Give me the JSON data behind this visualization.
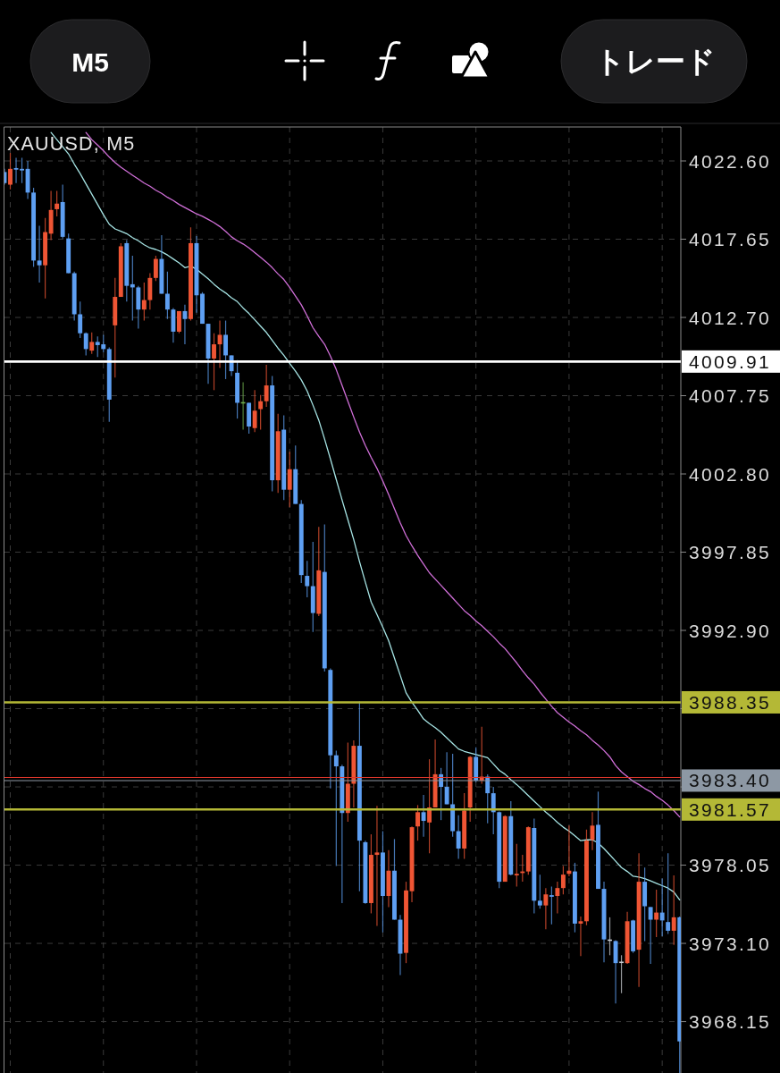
{
  "chart_data": {
    "type": "candlestick",
    "title": "XAUUSD, M5",
    "annotations": [
      "M5",
      "トレード"
    ],
    "categories": [
      null,
      null,
      null,
      null,
      null,
      null,
      null,
      null,
      null,
      null,
      null,
      null,
      null,
      null,
      null,
      null,
      null,
      null,
      null,
      null,
      null,
      null,
      null,
      null,
      null,
      null,
      null,
      null,
      null,
      null,
      null,
      null,
      null,
      null,
      null,
      null,
      null,
      null,
      null,
      null,
      null,
      null,
      null,
      null,
      null,
      null,
      null,
      null,
      null,
      null,
      null,
      null,
      null,
      null,
      null,
      null,
      null,
      null,
      null,
      null,
      null,
      null,
      null,
      null,
      null,
      null,
      null,
      null,
      null,
      null,
      null,
      null,
      null,
      null,
      null,
      null,
      null,
      null,
      null,
      null,
      null,
      null,
      null,
      null,
      null,
      null,
      null,
      null,
      null,
      null,
      null,
      null,
      null,
      null,
      null,
      null,
      null,
      null,
      null,
      null,
      null,
      null,
      null,
      null,
      null,
      null,
      null,
      null,
      null,
      null,
      null,
      null,
      null,
      null,
      null,
      null,
      null
    ],
    "ohlc": [
      [
        4021.9,
        4022.1,
        4021.1,
        4021.2
      ],
      [
        4021.1,
        4023.1,
        4020.8,
        4022.1
      ],
      [
        4022.15,
        4022.8,
        4021.2,
        4022.05
      ],
      [
        4022.1,
        4022.8,
        4021.2,
        4022.0
      ],
      [
        4022.1,
        4022.6,
        4020.2,
        4020.6
      ],
      [
        4020.6,
        4020.9,
        4015.9,
        4016.3
      ],
      [
        4016.3,
        4018.5,
        4014.9,
        4016.0
      ],
      [
        4016.0,
        4019.0,
        4013.9,
        4018.1
      ],
      [
        4018.0,
        4020.7,
        4017.6,
        4019.5
      ],
      [
        4019.55,
        4020.7,
        4019.1,
        4019.9
      ],
      [
        4020.0,
        4021.1,
        4017.7,
        4017.8
      ],
      [
        4017.7,
        4018.0,
        4015.5,
        4015.5
      ],
      [
        4015.5,
        4015.6,
        4012.5,
        4012.9
      ],
      [
        4012.9,
        4013.7,
        4011.4,
        4011.7
      ],
      [
        4011.7,
        4011.75,
        4010.3,
        4010.7
      ],
      [
        4010.6,
        4011.75,
        4010.4,
        4011.15
      ],
      [
        4011.15,
        4011.5,
        4010.2,
        4010.95
      ],
      [
        4011.0,
        4011.6,
        4010.5,
        4010.7
      ],
      [
        4010.7,
        4010.8,
        4006.1,
        4007.5
      ],
      [
        4012.2,
        4015.2,
        4008.9,
        4014.0
      ],
      [
        4014.0,
        4017.4,
        4014.0,
        4017.2
      ],
      [
        4017.4,
        4017.6,
        4013.7,
        4014.7
      ],
      [
        4014.8,
        4016.6,
        4012.5,
        4014.6
      ],
      [
        4014.6,
        4014.7,
        4012.0,
        4013.2
      ],
      [
        4013.2,
        4014.9,
        4012.5,
        4013.8
      ],
      [
        4013.8,
        4015.5,
        4013.2,
        4015.2
      ],
      [
        4015.2,
        4016.6,
        4015.0,
        4016.4
      ],
      [
        4016.4,
        4017.9,
        4014.2,
        4014.2
      ],
      [
        4014.2,
        4015.6,
        4012.6,
        4013.2
      ],
      [
        4013.2,
        4013.3,
        4011.1,
        4011.8
      ],
      [
        4011.8,
        4013.1,
        4011.7,
        4013.1
      ],
      [
        4013.1,
        4013.5,
        4011.0,
        4012.6
      ],
      [
        4012.6,
        4018.4,
        4012.5,
        4017.4
      ],
      [
        4017.4,
        4017.85,
        4013.0,
        4014.1
      ],
      [
        4014.2,
        4014.3,
        4012.3,
        4012.3
      ],
      [
        4012.3,
        4012.3,
        4008.5,
        4010.1
      ],
      [
        4010.1,
        4011.7,
        4008.1,
        4011.0
      ],
      [
        4011.0,
        4012.5,
        4009.5,
        4011.6
      ],
      [
        4011.6,
        4012.5,
        4008.8,
        4010.3
      ],
      [
        4010.3,
        4010.3,
        4009.0,
        4009.3
      ],
      [
        4009.2,
        4010.0,
        4006.3,
        4007.3
      ],
      [
        4007.3,
        4008.6,
        4005.6,
        4007.3
      ],
      [
        4007.3,
        4007.3,
        4005.35,
        4005.8
      ],
      [
        4005.7,
        4008.1,
        4005.45,
        4006.8
      ],
      [
        4006.9,
        4007.8,
        4005.6,
        4007.4
      ],
      [
        4007.4,
        4009.7,
        4007.05,
        4008.4
      ],
      [
        4008.4,
        4009.0,
        4001.7,
        4002.4
      ],
      [
        4002.4,
        4006.6,
        4001.6,
        4005.5
      ],
      [
        4005.6,
        4006.5,
        4001.15,
        4001.8
      ],
      [
        4001.8,
        4004.2,
        4000.7,
        4003.1
      ],
      [
        4003.1,
        4004.6,
        4000.9,
        4000.9
      ],
      [
        4000.9,
        4001.15,
        3995.9,
        3996.4
      ],
      [
        3996.35,
        3997.3,
        3995.0,
        3995.7
      ],
      [
        3995.7,
        3998.5,
        3992.8,
        3994.0
      ],
      [
        3993.95,
        3999.45,
        3993.8,
        3996.7
      ],
      [
        3996.6,
        3999.6,
        3990.3,
        3990.5
      ],
      [
        3990.4,
        3990.5,
        3982.9,
        3985.0
      ],
      [
        3985.0,
        3985.3,
        3978.0,
        3984.3
      ],
      [
        3984.3,
        3984.4,
        3975.65,
        3981.35
      ],
      [
        3981.35,
        3985.8,
        3980.8,
        3983.2
      ],
      [
        3983.2,
        3985.95,
        3981.7,
        3985.6
      ],
      [
        3985.6,
        3988.4,
        3976.4,
        3979.6
      ],
      [
        3979.5,
        3979.6,
        3975.6,
        3975.65
      ],
      [
        3975.65,
        3980.0,
        3975.0,
        3978.7
      ],
      [
        3978.7,
        3981.8,
        3974.2,
        3978.85
      ],
      [
        3978.85,
        3980.2,
        3973.8,
        3976.1
      ],
      [
        3976.1,
        3979.0,
        3975.4,
        3977.7
      ],
      [
        3977.7,
        3979.7,
        3974.6,
        3974.6
      ],
      [
        3974.6,
        3974.9,
        3971.1,
        3972.45
      ],
      [
        3972.5,
        3977.0,
        3971.85,
        3976.45
      ],
      [
        3976.4,
        3980.5,
        3975.7,
        3980.45
      ],
      [
        3980.5,
        3981.85,
        3979.6,
        3981.4
      ],
      [
        3981.4,
        3982.5,
        3979.85,
        3980.85
      ],
      [
        3980.75,
        3984.75,
        3978.8,
        3981.7
      ],
      [
        3981.7,
        3986.0,
        3981.7,
        3983.8
      ],
      [
        3983.8,
        3984.2,
        3980.9,
        3983.0
      ],
      [
        3983.0,
        3985.2,
        3981.9,
        3981.9
      ],
      [
        3981.9,
        3985.1,
        3979.85,
        3980.2
      ],
      [
        3980.2,
        3981.2,
        3978.45,
        3979.1
      ],
      [
        3979.1,
        3982.6,
        3978.45,
        3981.5
      ],
      [
        3981.7,
        3984.95,
        3980.8,
        3984.9
      ],
      [
        3984.9,
        3985.5,
        3983.3,
        3983.4
      ],
      [
        3983.4,
        3986.8,
        3983.2,
        3983.65
      ],
      [
        3983.65,
        3983.8,
        3980.7,
        3982.6
      ],
      [
        3982.6,
        3983.0,
        3980.0,
        3981.4
      ],
      [
        3981.4,
        3981.45,
        3976.6,
        3977.0
      ],
      [
        3977.0,
        3981.2,
        3977.0,
        3981.15
      ],
      [
        3981.15,
        3982.1,
        3977.4,
        3977.45
      ],
      [
        3977.4,
        3979.4,
        3976.7,
        3977.5
      ],
      [
        3977.55,
        3978.7,
        3977.0,
        3977.65
      ],
      [
        3977.65,
        3980.5,
        3977.45,
        3980.45
      ],
      [
        3980.4,
        3981.0,
        3975.0,
        3975.8
      ],
      [
        3975.8,
        3977.45,
        3975.3,
        3975.5
      ],
      [
        3975.5,
        3976.6,
        3974.0,
        3976.2
      ],
      [
        3976.15,
        3976.7,
        3974.3,
        3976.05
      ],
      [
        3976.1,
        3977.0,
        3975.0,
        3976.6
      ],
      [
        3976.6,
        3978.0,
        3976.2,
        3977.45
      ],
      [
        3977.5,
        3980.55,
        3977.35,
        3977.7
      ],
      [
        3977.65,
        3978.2,
        3973.8,
        3974.35
      ],
      [
        3974.35,
        3974.8,
        3972.3,
        3974.5
      ],
      [
        3974.5,
        3980.3,
        3974.25,
        3979.6
      ],
      [
        3979.65,
        3981.4,
        3979.0,
        3980.55
      ],
      [
        3980.6,
        3982.7,
        3976.55,
        3976.55
      ],
      [
        3976.55,
        3977.0,
        3971.9,
        3973.35
      ],
      [
        3973.3,
        3974.75,
        3972.35,
        3973.3
      ],
      [
        3973.25,
        3973.3,
        3969.3,
        3971.85
      ],
      [
        3971.9,
        3972.35,
        3969.95,
        3971.9
      ],
      [
        3971.85,
        3975.1,
        3971.8,
        3974.5
      ],
      [
        3974.55,
        3974.6,
        3972.5,
        3972.6
      ],
      [
        3972.7,
        3978.8,
        3970.35,
        3977.0
      ],
      [
        3977.0,
        3977.9,
        3973.25,
        3975.45
      ],
      [
        3975.4,
        3975.4,
        3971.8,
        3974.6
      ],
      [
        3974.6,
        3976.5,
        3973.5,
        3975.05
      ],
      [
        3975.05,
        3977.2,
        3973.55,
        3974.55
      ],
      [
        3974.45,
        3978.8,
        3973.7,
        3973.9
      ],
      [
        3973.9,
        3977.4,
        3973.0,
        3974.75
      ],
      [
        3974.75,
        3974.8,
        3964.9,
        3966.9
      ]
    ],
    "colors": [
      "#5e9ff2",
      "#ef5534",
      "#5e9ff2",
      "#5e9ff2",
      "#5e9ff2",
      "#5e9ff2",
      "#5e9ff2",
      "#ef5534",
      "#ef5534",
      "#ef5534",
      "#5e9ff2",
      "#5e9ff2",
      "#5e9ff2",
      "#5e9ff2",
      "#5e9ff2",
      "#ef5534",
      "#5e9ff2",
      "#5e9ff2",
      "#5e9ff2",
      "#ef5534",
      "#ef5534",
      "#5e9ff2",
      "#5e9ff2",
      "#5e9ff2",
      "#ef5534",
      "#ef5534",
      "#ef5534",
      "#5e9ff2",
      "#5e9ff2",
      "#5e9ff2",
      "#ef5534",
      "#5e9ff2",
      "#ef5534",
      "#5e9ff2",
      "#5e9ff2",
      "#5e9ff2",
      "#ef5534",
      "#ef5534",
      "#5e9ff2",
      "#5e9ff2",
      "#5e9ff2",
      "#6fae4e",
      "#5e9ff2",
      "#ef5534",
      "#ef5534",
      "#ef5534",
      "#5e9ff2",
      "#ef5534",
      "#5e9ff2",
      "#ef5534",
      "#5e9ff2",
      "#5e9ff2",
      "#5e9ff2",
      "#5e9ff2",
      "#ef5534",
      "#5e9ff2",
      "#5e9ff2",
      "#5e9ff2",
      "#5e9ff2",
      "#ef5534",
      "#ef5534",
      "#5e9ff2",
      "#5e9ff2",
      "#ef5534",
      "#ef5534",
      "#5e9ff2",
      "#ef5534",
      "#5e9ff2",
      "#5e9ff2",
      "#ef5534",
      "#ef5534",
      "#ef5534",
      "#5e9ff2",
      "#ef5534",
      "#ef5534",
      "#5e9ff2",
      "#5e9ff2",
      "#5e9ff2",
      "#5e9ff2",
      "#ef5534",
      "#ef5534",
      "#5e9ff2",
      "#ef5534",
      "#5e9ff2",
      "#5e9ff2",
      "#5e9ff2",
      "#ef5534",
      "#5e9ff2",
      "#ef5534",
      "#ef5534",
      "#ef5534",
      "#5e9ff2",
      "#5e9ff2",
      "#ef5534",
      "#5e9ff2",
      "#ef5534",
      "#ef5534",
      "#ef5534",
      "#5e9ff2",
      "#ef5534",
      "#ef5534",
      "#ef5534",
      "#5e9ff2",
      "#5e9ff2",
      "#c8ccd2",
      "#5e9ff2",
      "#c8ccd2",
      "#ef5534",
      "#5e9ff2",
      "#ef5534",
      "#5e9ff2",
      "#5e9ff2",
      "#ef5534",
      "#5e9ff2",
      "#5e9ff2",
      "#ef5534",
      "#5e9ff2"
    ],
    "series": [
      {
        "type": "line",
        "color": "#a6e4e4",
        "values": [
          null,
          null,
          null,
          null,
          null,
          null,
          null,
          null,
          4024.4,
          4023.95,
          4023.5,
          4023.05,
          4022.4,
          4021.8,
          4021.15,
          4020.5,
          4019.85,
          4019.2,
          4018.6,
          4018.3,
          4018.15,
          4018.0,
          4017.75,
          4017.55,
          4017.3,
          4017.1,
          4017.0,
          4016.85,
          4016.65,
          4016.4,
          4016.15,
          4015.85,
          4015.95,
          4015.75,
          4015.45,
          4015.15,
          4014.8,
          4014.5,
          4014.25,
          4013.95,
          4013.7,
          4013.3,
          4012.95,
          4012.55,
          4012.15,
          4011.75,
          4011.25,
          4010.75,
          4010.3,
          4009.8,
          4009.3,
          4008.75,
          4008.05,
          4007.15,
          4006.2,
          4005.0,
          4003.75,
          4002.45,
          4001.15,
          3999.9,
          3998.65,
          3997.25,
          3995.95,
          3994.7,
          3993.9,
          3993.1,
          3992.25,
          3991.15,
          3990.05,
          3988.95,
          3988.35,
          3987.85,
          3987.3,
          3987.0,
          3986.75,
          3986.45,
          3986.1,
          3985.75,
          3985.4,
          3985.25,
          3985.15,
          3985.05,
          3984.95,
          3984.85,
          3984.45,
          3984.05,
          3983.8,
          3983.45,
          3983.15,
          3982.8,
          3982.45,
          3982.1,
          3981.75,
          3981.4,
          3981.1,
          3980.75,
          3980.45,
          3980.2,
          3979.9,
          3979.6,
          3979.65,
          3979.65,
          3979.45,
          3979.1,
          3978.7,
          3978.3,
          3977.9,
          3977.65,
          3977.35,
          3977.3,
          3977.2,
          3977.05,
          3976.9,
          3976.75,
          3976.6,
          3976.35,
          3975.85
        ]
      },
      {
        "type": "line",
        "color": "#d06fd8",
        "values": [
          null,
          null,
          null,
          null,
          null,
          null,
          null,
          null,
          null,
          null,
          null,
          null,
          null,
          null,
          4024.4,
          4023.95,
          4023.6,
          4023.25,
          4022.85,
          4022.5,
          4022.2,
          4021.95,
          4021.7,
          4021.45,
          4021.2,
          4021.0,
          4020.75,
          4020.55,
          4020.3,
          4020.1,
          4019.85,
          4019.65,
          4019.45,
          4019.25,
          4019.1,
          4018.9,
          4018.7,
          4018.45,
          4018.15,
          4017.8,
          4017.55,
          4017.35,
          4017.1,
          4016.8,
          4016.5,
          4016.2,
          4015.85,
          4015.45,
          4015.1,
          4014.6,
          4014.05,
          4013.5,
          4012.8,
          4012.05,
          4011.5,
          4011.0,
          4010.25,
          4009.4,
          4008.4,
          4007.4,
          4006.4,
          4005.45,
          4004.6,
          4003.85,
          4003.15,
          4002.35,
          4001.5,
          4000.6,
          3999.7,
          3998.9,
          3998.25,
          3997.65,
          3997.1,
          3996.55,
          3996.15,
          3995.75,
          3995.35,
          3994.95,
          3994.55,
          3994.15,
          3993.85,
          3993.5,
          3993.2,
          3992.85,
          3992.5,
          3992.1,
          3991.75,
          3991.3,
          3990.85,
          3990.35,
          3989.9,
          3989.5,
          3989.0,
          3988.55,
          3988.1,
          3987.7,
          3987.4,
          3987.1,
          3986.85,
          3986.55,
          3986.3,
          3985.95,
          3985.65,
          3985.3,
          3984.9,
          3984.35,
          3983.95,
          3983.65,
          3983.35,
          3983.15,
          3982.9,
          3982.7,
          3982.4,
          3982.15,
          3981.85,
          3981.5,
          3981.1
        ]
      }
    ],
    "ylim": [
      3964.9,
      4024.75
    ],
    "yticks": [
      3968.15,
      {
        "value": 3973.1,
        "label": "3973.10"
      },
      3978.05,
      {
        "value": 3983.0,
        "label": null
      },
      {
        "value": 3987.95,
        "label": null
      },
      {
        "value": 3992.9,
        "label": "3992.90"
      },
      3997.85,
      {
        "value": 4002.8,
        "label": "4002.80"
      },
      4007.75,
      {
        "value": 4012.7,
        "label": "4012.70"
      },
      4017.65,
      {
        "value": 4022.6,
        "label": "4022.60"
      }
    ],
    "grid": true,
    "tick_labels": "y",
    "ref_lines": [
      {
        "axis": "y",
        "value": 4009.91,
        "label": "4009.91",
        "color": "#ffffff"
      },
      {
        "axis": "y",
        "value": 3988.35,
        "label": "3988.35",
        "color": "#b4b836"
      },
      {
        "axis": "y",
        "value": 3983.6,
        "color": "#e0372c"
      },
      {
        "axis": "y",
        "value": 3983.4,
        "label": "3983.40",
        "color": "#8d98a4"
      },
      {
        "axis": "y",
        "value": 3981.57,
        "label": "3981.57",
        "color": "#b4b836"
      }
    ]
  }
}
